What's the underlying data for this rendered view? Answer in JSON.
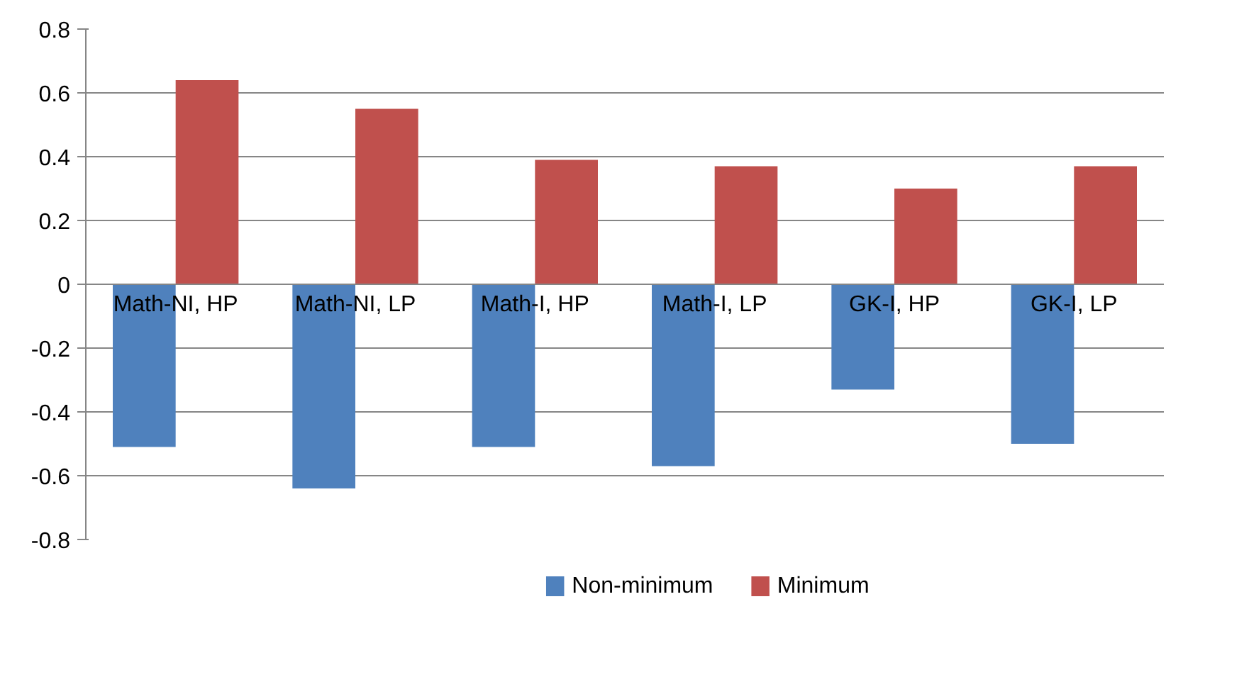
{
  "chart_data": {
    "type": "bar",
    "categories": [
      "Math-NI, HP",
      "Math-NI, LP",
      "Math-I, HP",
      "Math-I, LP",
      "GK-I, HP",
      "GK-I, LP"
    ],
    "series": [
      {
        "name": "Non-minimum",
        "color": "#4f81bd",
        "values": [
          -0.51,
          -0.64,
          -0.51,
          -0.57,
          -0.33,
          -0.5
        ]
      },
      {
        "name": "Minimum",
        "color": "#c0504d",
        "values": [
          0.64,
          0.55,
          0.39,
          0.37,
          0.3,
          0.37
        ]
      }
    ],
    "ylim": [
      -0.8,
      0.8
    ],
    "yticks": [
      {
        "value": -0.8,
        "label": "-0.8"
      },
      {
        "value": -0.6,
        "label": "-0.6"
      },
      {
        "value": -0.4,
        "label": "-0.4"
      },
      {
        "value": -0.2,
        "label": "-0.2"
      },
      0,
      0.2,
      0.4,
      0.6,
      0.8
    ],
    "grid": "y",
    "legend": "bottom"
  }
}
